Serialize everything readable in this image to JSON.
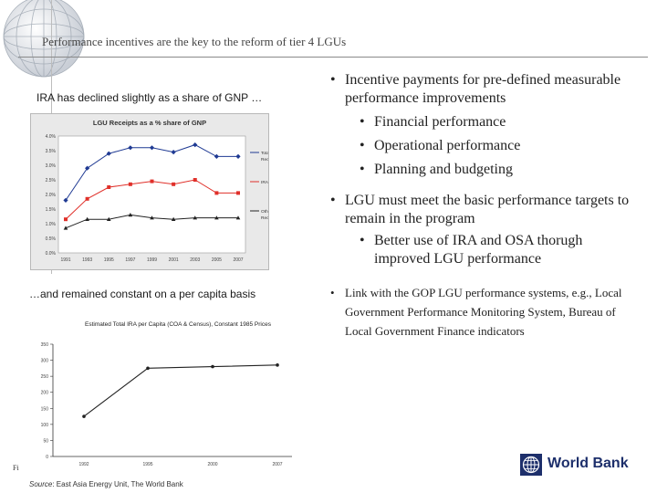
{
  "slide": {
    "title": "Performance incentives are the key to the reform of tier 4 LGUs",
    "caption_top": "IRA has declined slightly as a share of GNP …",
    "caption_bottom": "…and remained constant on a per capita basis",
    "source_label": "Source",
    "source_text": ": East Asia Energy Unit, The World Bank",
    "corner_marker": "Fi",
    "logo_text": "World Bank",
    "logo_icon": "globe-grid-icon",
    "accent_color": "#1d2f6b"
  },
  "bullets": {
    "b1": "Incentive payments for pre-defined measurable performance improvements",
    "b1_1": "Financial performance",
    "b1_2": "Operational performance",
    "b1_3": "Planning and budgeting",
    "b2": "LGU must meet the basic performance targets to remain in the program",
    "b2_1": "Better use of IRA and OSA thorugh improved LGU performance",
    "b3": "Link with the GOP LGU performance systems, e.g., Local Government Performance Monitoring System, Bureau of Local Government Finance indicators"
  },
  "chart_data": [
    {
      "type": "line",
      "title": "LGU Receipts as a % share of GNP",
      "categories": [
        "1991",
        "1993",
        "1995",
        "1997",
        "1999",
        "2001",
        "2003",
        "2005",
        "2007"
      ],
      "ylim": [
        0,
        4.0
      ],
      "yticks": [
        "0.0%",
        "0.5%",
        "1.0%",
        "1.5%",
        "2.0%",
        "2.5%",
        "3.0%",
        "3.5%",
        "4.0%"
      ],
      "yvalues": [
        0,
        0.5,
        1.0,
        1.5,
        2.0,
        2.5,
        3.0,
        3.5,
        4.0
      ],
      "grid": false,
      "legend_position": "right",
      "series": [
        {
          "name": "Total LGU Receipts",
          "color": "#1f3a93",
          "marker": "diamond",
          "values": [
            1.8,
            2.9,
            3.4,
            3.6,
            3.6,
            3.45,
            3.7,
            3.3,
            3.3
          ]
        },
        {
          "name": "IRA",
          "color": "#e0302a",
          "marker": "square",
          "values": [
            1.15,
            1.85,
            2.25,
            2.35,
            2.45,
            2.35,
            2.5,
            2.05,
            2.05
          ]
        },
        {
          "name": "Other LGU Receipts",
          "color": "#222222",
          "marker": "triangle",
          "values": [
            0.85,
            1.15,
            1.15,
            1.3,
            1.2,
            1.15,
            1.2,
            1.2,
            1.2
          ]
        }
      ]
    },
    {
      "type": "line",
      "title": "Estimated Total IRA per Capita (COA & Census), Constant 1985 Prices",
      "categories": [
        "1992",
        "1995",
        "2000",
        "2007"
      ],
      "ylim": [
        0,
        350
      ],
      "yticks": [
        "0",
        "50",
        "100",
        "150",
        "200",
        "250",
        "300",
        "350"
      ],
      "yvalues": [
        0,
        50,
        100,
        150,
        200,
        250,
        300,
        350
      ],
      "grid": false,
      "series": [
        {
          "color": "#222222",
          "values": [
            125,
            275,
            280,
            285
          ]
        }
      ]
    }
  ]
}
